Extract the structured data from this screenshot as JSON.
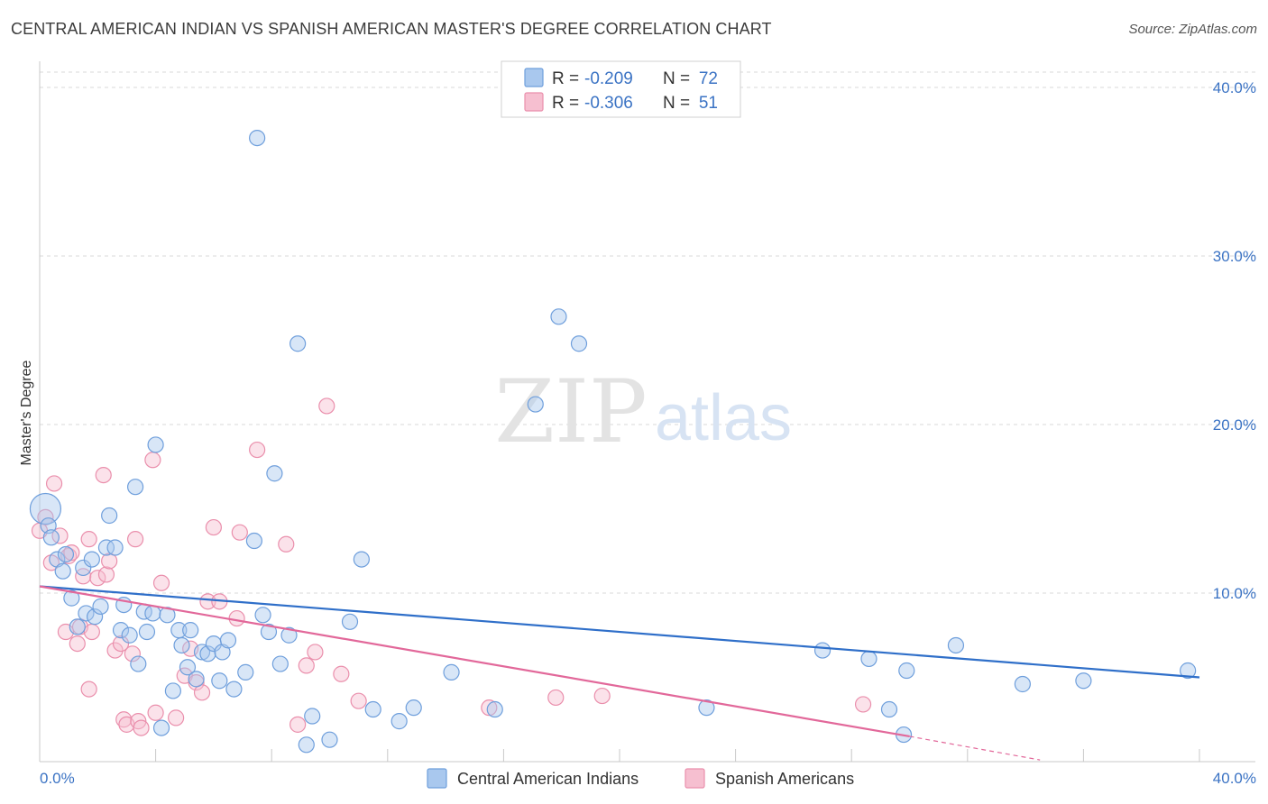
{
  "title": "CENTRAL AMERICAN INDIAN VS SPANISH AMERICAN MASTER'S DEGREE CORRELATION CHART",
  "source": "Source: ZipAtlas.com",
  "watermark": {
    "zip": "ZIP",
    "atlas": "atlas"
  },
  "colors": {
    "blue_fill": "#a9c8ee",
    "blue_stroke": "#6f9fdc",
    "blue_line": "#2f6fc9",
    "pink_fill": "#f6bfd0",
    "pink_stroke": "#ea8fac",
    "pink_line": "#e2689a",
    "grid": "#d9d9d9",
    "label": "#3b73c4"
  },
  "chart_data": {
    "type": "scatter",
    "title": "CENTRAL AMERICAN INDIAN VS SPANISH AMERICAN MASTER'S DEGREE CORRELATION CHART",
    "xlabel": "",
    "ylabel": "Master's Degree",
    "xlim": [
      0,
      40
    ],
    "ylim": [
      0,
      40
    ],
    "x_tick_labels": [
      "0.0%",
      "40.0%"
    ],
    "y_tick_labels": [
      "10.0%",
      "20.0%",
      "30.0%",
      "40.0%"
    ],
    "y_ticks": [
      10,
      20,
      30,
      40
    ],
    "legend": [
      {
        "name": "Central American Indians",
        "r_label": "R =",
        "r": "-0.209",
        "n_label": "N =",
        "n": "72"
      },
      {
        "name": "Spanish Americans",
        "r_label": "R =",
        "r": "-0.306",
        "n_label": "N =",
        "n": "51"
      }
    ],
    "series": [
      {
        "name": "Central American Indians",
        "trend": {
          "x0": 0,
          "y0": 10.4,
          "x1": 40,
          "y1": 5.0
        },
        "points": [
          [
            0.2,
            15.0
          ],
          [
            0.3,
            14.0
          ],
          [
            0.4,
            13.3
          ],
          [
            0.6,
            12.0
          ],
          [
            0.8,
            11.3
          ],
          [
            0.9,
            12.3
          ],
          [
            1.1,
            9.7
          ],
          [
            1.3,
            8.0
          ],
          [
            1.5,
            11.5
          ],
          [
            1.6,
            8.8
          ],
          [
            1.8,
            12.0
          ],
          [
            1.9,
            8.6
          ],
          [
            2.1,
            9.2
          ],
          [
            2.3,
            12.7
          ],
          [
            2.4,
            14.6
          ],
          [
            2.6,
            12.7
          ],
          [
            2.8,
            7.8
          ],
          [
            2.9,
            9.3
          ],
          [
            3.1,
            7.5
          ],
          [
            3.3,
            16.3
          ],
          [
            3.4,
            5.8
          ],
          [
            3.6,
            8.9
          ],
          [
            3.7,
            7.7
          ],
          [
            3.9,
            8.8
          ],
          [
            4.0,
            18.8
          ],
          [
            4.2,
            2.0
          ],
          [
            4.4,
            8.7
          ],
          [
            4.6,
            4.2
          ],
          [
            4.8,
            7.8
          ],
          [
            4.9,
            6.9
          ],
          [
            5.1,
            5.6
          ],
          [
            5.2,
            7.8
          ],
          [
            5.4,
            4.9
          ],
          [
            5.6,
            6.5
          ],
          [
            5.8,
            6.4
          ],
          [
            6.0,
            7.0
          ],
          [
            6.2,
            4.8
          ],
          [
            6.3,
            6.5
          ],
          [
            6.5,
            7.2
          ],
          [
            6.7,
            4.3
          ],
          [
            7.1,
            5.3
          ],
          [
            7.4,
            13.1
          ],
          [
            7.5,
            37.0
          ],
          [
            7.7,
            8.7
          ],
          [
            7.9,
            7.7
          ],
          [
            8.1,
            17.1
          ],
          [
            8.3,
            5.8
          ],
          [
            8.6,
            7.5
          ],
          [
            8.9,
            24.8
          ],
          [
            9.2,
            1.0
          ],
          [
            9.4,
            2.7
          ],
          [
            10.0,
            1.3
          ],
          [
            10.7,
            8.3
          ],
          [
            11.1,
            12.0
          ],
          [
            11.5,
            3.1
          ],
          [
            12.4,
            2.4
          ],
          [
            12.9,
            3.2
          ],
          [
            14.2,
            5.3
          ],
          [
            15.7,
            3.1
          ],
          [
            17.1,
            21.2
          ],
          [
            17.9,
            26.4
          ],
          [
            18.6,
            24.8
          ],
          [
            23.0,
            3.2
          ],
          [
            27.0,
            6.6
          ],
          [
            28.6,
            6.1
          ],
          [
            29.3,
            3.1
          ],
          [
            29.9,
            5.4
          ],
          [
            29.8,
            1.6
          ],
          [
            31.6,
            6.9
          ],
          [
            33.9,
            4.6
          ],
          [
            36.0,
            4.8
          ],
          [
            39.6,
            5.4
          ]
        ]
      },
      {
        "name": "Spanish Americans",
        "trend": {
          "x0": 0,
          "y0": 10.4,
          "x1": 30.0,
          "y1": 1.5,
          "dash_x1": 34.5,
          "dash_y1": 0.1
        },
        "points": [
          [
            0.2,
            14.5
          ],
          [
            0.4,
            11.8
          ],
          [
            0.5,
            16.5
          ],
          [
            0.7,
            13.4
          ],
          [
            0.9,
            7.7
          ],
          [
            1.0,
            12.2
          ],
          [
            1.1,
            12.4
          ],
          [
            1.3,
            7.0
          ],
          [
            1.4,
            8.0
          ],
          [
            1.5,
            11.0
          ],
          [
            1.7,
            13.2
          ],
          [
            1.7,
            4.3
          ],
          [
            1.8,
            7.7
          ],
          [
            2.0,
            10.9
          ],
          [
            2.2,
            17.0
          ],
          [
            2.3,
            11.1
          ],
          [
            2.4,
            11.9
          ],
          [
            2.6,
            6.6
          ],
          [
            2.8,
            7.0
          ],
          [
            2.9,
            2.5
          ],
          [
            3.0,
            2.2
          ],
          [
            3.2,
            6.4
          ],
          [
            3.3,
            13.2
          ],
          [
            3.4,
            2.4
          ],
          [
            3.5,
            2.0
          ],
          [
            3.9,
            17.9
          ],
          [
            4.0,
            2.9
          ],
          [
            4.2,
            10.6
          ],
          [
            4.7,
            2.6
          ],
          [
            5.0,
            5.1
          ],
          [
            5.2,
            6.7
          ],
          [
            5.4,
            4.7
          ],
          [
            5.6,
            4.1
          ],
          [
            5.8,
            9.5
          ],
          [
            6.0,
            13.9
          ],
          [
            6.2,
            9.5
          ],
          [
            6.8,
            8.5
          ],
          [
            6.9,
            13.6
          ],
          [
            7.5,
            18.5
          ],
          [
            8.5,
            12.9
          ],
          [
            8.9,
            2.2
          ],
          [
            9.2,
            5.7
          ],
          [
            9.5,
            6.5
          ],
          [
            9.9,
            21.1
          ],
          [
            10.4,
            5.2
          ],
          [
            11.0,
            3.6
          ],
          [
            15.5,
            3.2
          ],
          [
            17.8,
            3.8
          ],
          [
            19.4,
            3.9
          ],
          [
            28.4,
            3.4
          ],
          [
            0.0,
            13.7
          ]
        ]
      }
    ]
  }
}
